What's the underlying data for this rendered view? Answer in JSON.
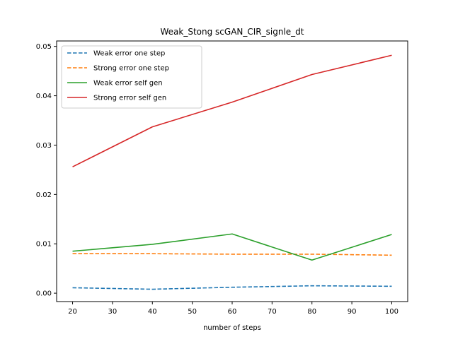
{
  "chart_data": {
    "type": "line",
    "title": "Weak_Stong scGAN_CIR_signle_dt",
    "xlabel": "number of steps",
    "ylabel": "",
    "xlim": [
      16,
      104
    ],
    "ylim": [
      -0.0017,
      0.0511
    ],
    "x_ticks": [
      20,
      30,
      40,
      50,
      60,
      70,
      80,
      90,
      100
    ],
    "y_ticks": [
      0.0,
      0.01,
      0.02,
      0.03,
      0.04,
      0.05
    ],
    "y_tick_labels": [
      "0.00",
      "0.01",
      "0.02",
      "0.03",
      "0.04",
      "0.05"
    ],
    "x": [
      20,
      40,
      60,
      80,
      100
    ],
    "legend_position": "top-left",
    "grid": false,
    "series": [
      {
        "name": "Weak error one step",
        "values": [
          0.0011,
          0.0008,
          0.0012,
          0.0015,
          0.0014
        ],
        "color": "#1f77b4",
        "dashed": true
      },
      {
        "name": "Strong error one step",
        "values": [
          0.008,
          0.008,
          0.0079,
          0.0079,
          0.0077
        ],
        "color": "#ff7f0e",
        "dashed": true
      },
      {
        "name": "Weak error self gen",
        "values": [
          0.0085,
          0.0099,
          0.012,
          0.0067,
          0.0119
        ],
        "color": "#2ca02c",
        "dashed": false
      },
      {
        "name": "Strong error self gen",
        "values": [
          0.0256,
          0.0337,
          0.0387,
          0.0443,
          0.0482
        ],
        "color": "#d62728",
        "dashed": false
      }
    ]
  }
}
